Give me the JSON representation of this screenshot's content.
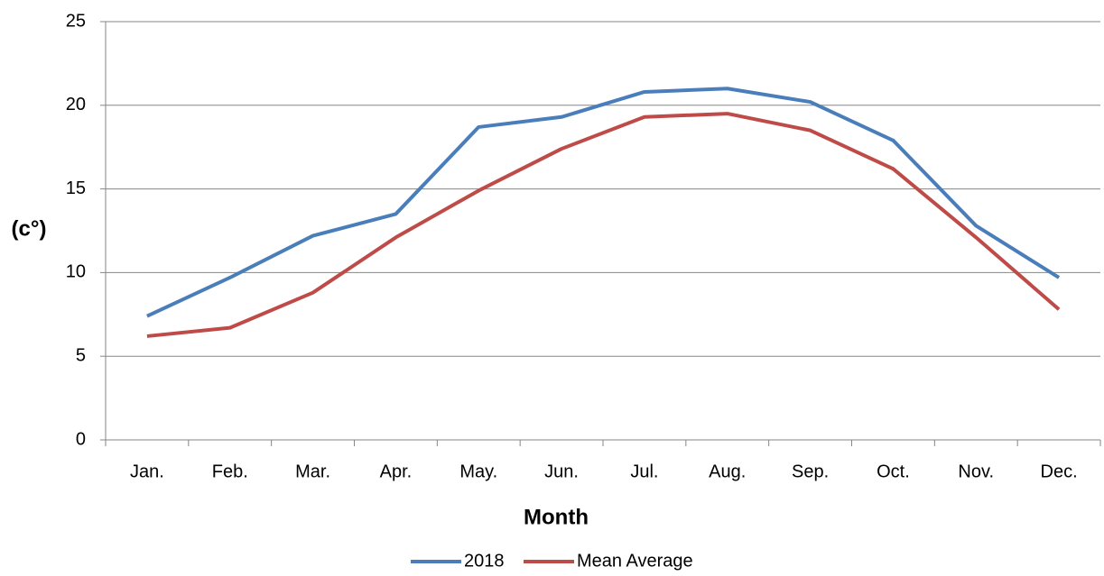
{
  "chart_data": {
    "type": "line",
    "x_label": "Month",
    "y_label": "(c°)",
    "categories": [
      "Jan.",
      "Feb.",
      "Mar.",
      "Apr.",
      "May.",
      "Jun.",
      "Jul.",
      "Aug.",
      "Sep.",
      "Oct.",
      "Nov.",
      "Dec."
    ],
    "series": [
      {
        "name": "2018",
        "color": "#4a7ebb",
        "values": [
          7.4,
          9.7,
          12.2,
          13.5,
          18.7,
          19.3,
          20.8,
          21.0,
          20.2,
          17.9,
          12.8,
          9.7
        ]
      },
      {
        "name": "Mean Average",
        "color": "#be4b48",
        "values": [
          6.2,
          6.7,
          8.8,
          12.1,
          14.9,
          17.4,
          19.3,
          19.5,
          18.5,
          16.2,
          12.1,
          7.8
        ]
      }
    ],
    "ylim": [
      0,
      25
    ],
    "yticks": [
      0,
      5,
      10,
      15,
      20,
      25
    ],
    "grid": true,
    "legend": "bottom"
  }
}
